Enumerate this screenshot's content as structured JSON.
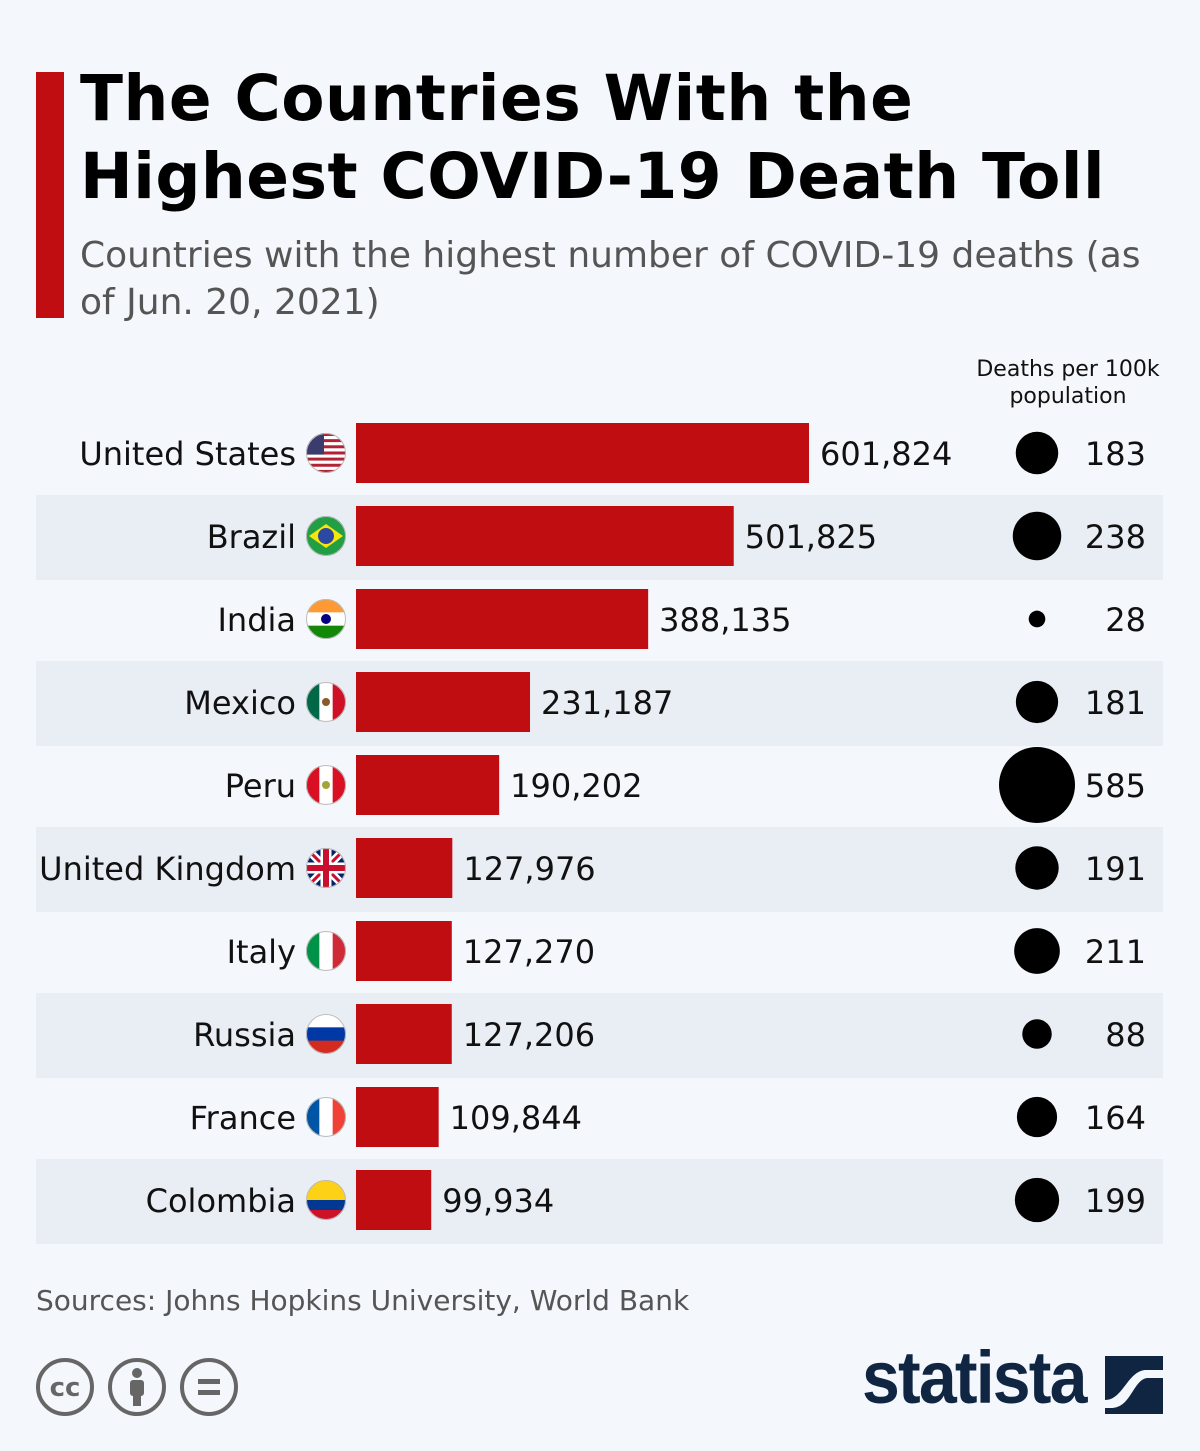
{
  "header": {
    "title": "The Countries With the Highest COVID-19 Death Toll",
    "subtitle": "Countries with the highest number of COVID-19 deaths (as of Jun. 20, 2021)"
  },
  "colors": {
    "bar": "#c00d12",
    "band": "#e9eef5",
    "dot": "#000000",
    "logo": "#0f2542"
  },
  "chart_data": {
    "type": "bar",
    "orientation": "horizontal",
    "categories": [
      "United States",
      "Brazil",
      "India",
      "Mexico",
      "Peru",
      "United Kingdom",
      "Italy",
      "Russia",
      "France",
      "Colombia"
    ],
    "flags": [
      "us-flag",
      "brazil-flag",
      "india-flag",
      "mexico-flag",
      "peru-flag",
      "uk-flag",
      "italy-flag",
      "russia-flag",
      "france-flag",
      "colombia-flag"
    ],
    "series": [
      {
        "name": "Deaths",
        "values": [
          601824,
          501825,
          388135,
          231187,
          190202,
          127976,
          127270,
          127206,
          109844,
          99934
        ],
        "labels": [
          "601,824",
          "501,825",
          "388,135",
          "231,187",
          "190,202",
          "127,976",
          "127,270",
          "127,206",
          "109,844",
          "99,934"
        ]
      },
      {
        "name": "Deaths per 100k population",
        "values": [
          183,
          238,
          28,
          181,
          585,
          191,
          211,
          88,
          164,
          199
        ],
        "display": "bubble"
      }
    ],
    "column_header": "Deaths per 100k population"
  },
  "footer": {
    "source": "Sources: Johns Hopkins University, World Bank",
    "license_icons": [
      "creative-commons-icon",
      "attribution-icon",
      "no-derivatives-icon"
    ],
    "logo": "statista"
  }
}
